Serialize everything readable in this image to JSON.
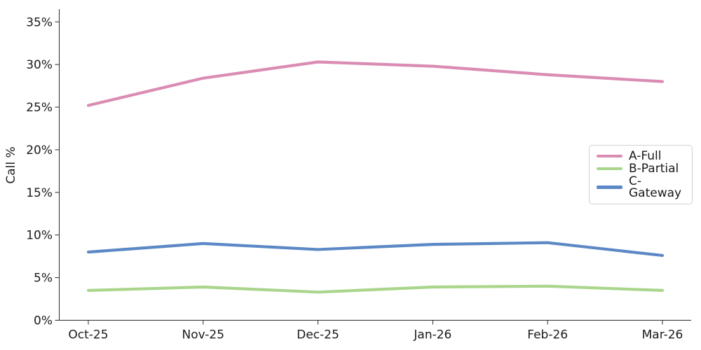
{
  "figure": {
    "background": "#ffffff",
    "axis_color": "#2b2b2b",
    "text_color": "#1a1a1a",
    "legend_border_color": "#d2d2d2"
  },
  "chart_data": {
    "type": "line",
    "title": "",
    "xlabel": "",
    "ylabel": "Call %",
    "categories": [
      "Oct-25",
      "Nov-25",
      "Dec-25",
      "Jan-26",
      "Feb-26",
      "Mar-26"
    ],
    "series": [
      {
        "name": "A-Full",
        "color": "#DA8CB3",
        "values": [
          25.2,
          28.4,
          30.3,
          29.8,
          28.8,
          28.0
        ]
      },
      {
        "name": "B-Partial",
        "color": "#A9D68C",
        "values": [
          3.5,
          3.9,
          3.3,
          3.9,
          4.0,
          3.5
        ]
      },
      {
        "name": "C-Gateway",
        "color": "#5C88C5",
        "values": [
          8.0,
          9.0,
          8.3,
          8.9,
          9.1,
          7.6
        ]
      }
    ],
    "y_tick_values": [
      0,
      5,
      10,
      15,
      20,
      25,
      30,
      35
    ],
    "y_tick_labels": [
      "0%",
      "5%",
      "10%",
      "15%",
      "20%",
      "25%",
      "30%",
      "35%"
    ],
    "ylim": [
      0,
      36.5
    ],
    "grid": false,
    "legend_position": "center-right",
    "legend_entries": [
      "A-Full",
      "B-Partial",
      "C-Gateway"
    ]
  }
}
